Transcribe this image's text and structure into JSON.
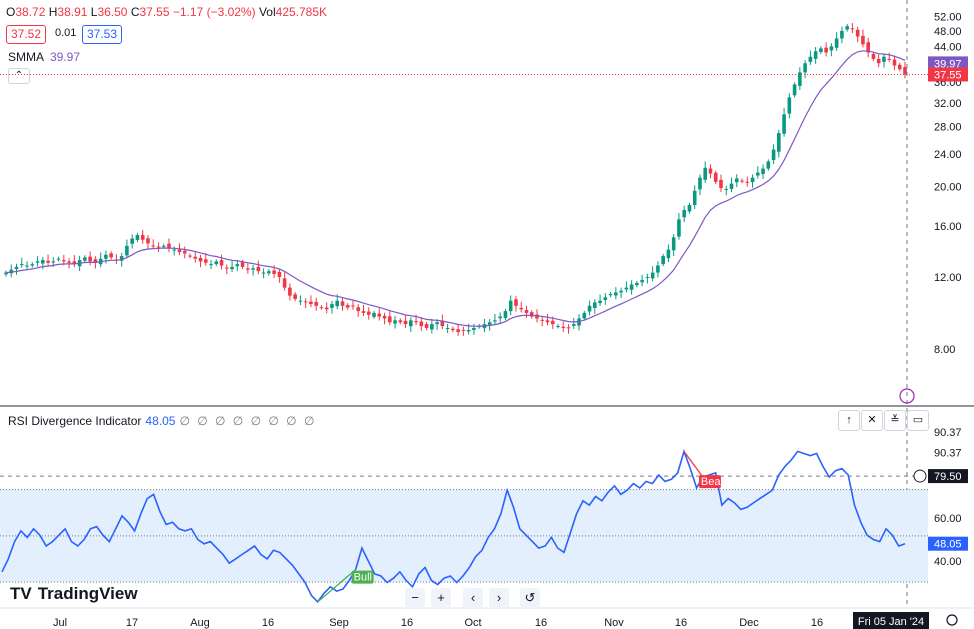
{
  "legend": {
    "o_label": "O",
    "o": "38.72",
    "h_label": "H",
    "h": "38.91",
    "l_label": "L",
    "l": "36.50",
    "c_label": "C",
    "c": "37.55",
    "change": "−1.17 (−3.02%)",
    "vol_label": "Vol",
    "vol": "425.785K",
    "sell": "37.52",
    "spread": "0.01",
    "buy": "37.53",
    "smma_label": "SMMA",
    "smma_value": "39.97",
    "collapse_glyph": "⌃"
  },
  "rsi": {
    "title": "RSI Divergence Indicator",
    "value": "48.05",
    "slots": "∅ ∅ ∅ ∅ ∅ ∅ ∅ ∅"
  },
  "brand": {
    "name": "TradingView",
    "mark": "TV"
  },
  "nav": {
    "zoom_out": "−",
    "zoom_in": "+",
    "back": "‹",
    "forward": "›",
    "reset": "↺"
  },
  "pane_controls": {
    "up": "↑",
    "close": "✕",
    "collapse": "≚",
    "maximize": "▭"
  },
  "colors": {
    "up": "#089981",
    "down": "#f23645",
    "smma": "#7e57c2",
    "rsi": "#2962ff",
    "band": "#e3effd",
    "bull": "#4caf50",
    "bear": "#f23645"
  },
  "chart_data": [
    {
      "type": "candlestick",
      "title": "",
      "y_ticks": [
        8,
        12,
        16,
        20,
        24,
        28,
        32,
        36,
        44,
        48,
        52
      ],
      "y_tick_labels": [
        "8.00",
        "12.00",
        "16.00",
        "20.00",
        "24.00",
        "28.00",
        "32.00",
        "36.00",
        "44.00",
        "48.00",
        "52.00"
      ],
      "ylim": [
        6.0,
        54.0
      ],
      "scale": "log",
      "x_tick_labels": [
        "Jul",
        "17",
        "Aug",
        "16",
        "Sep",
        "16",
        "Oct",
        "16",
        "Nov",
        "16",
        "Dec",
        "16",
        "Fri 05 Jan '24"
      ],
      "last_price": 37.55,
      "last_price_label": "37.55",
      "smma_last": 39.97,
      "smma_last_label": "39.97",
      "close_path": [
        12.3,
        12.5,
        12.7,
        12.9,
        12.8,
        12.9,
        13.1,
        13.2,
        13.0,
        13.1,
        13.3,
        13.1,
        13.0,
        12.9,
        13.2,
        13.4,
        13.1,
        13.0,
        13.3,
        13.6,
        13.4,
        13.2,
        13.5,
        14.3,
        14.9,
        15.2,
        14.8,
        14.5,
        14.3,
        14.2,
        14.3,
        14.1,
        14.0,
        13.8,
        13.7,
        13.5,
        13.3,
        13.1,
        13.0,
        12.9,
        13.1,
        12.8,
        12.6,
        12.7,
        12.9,
        12.7,
        12.5,
        12.6,
        12.4,
        12.3,
        12.4,
        12.2,
        12.0,
        11.3,
        10.8,
        10.6,
        10.5,
        10.4,
        10.3,
        10.2,
        10.1,
        10.0,
        10.3,
        10.5,
        10.2,
        10.1,
        10.2,
        9.9,
        9.8,
        9.7,
        9.8,
        9.6,
        9.5,
        9.3,
        9.4,
        9.3,
        9.2,
        9.4,
        9.3,
        9.1,
        9.0,
        9.2,
        9.3,
        9.1,
        9.0,
        8.9,
        8.8,
        8.9,
        8.9,
        9.0,
        9.1,
        9.2,
        9.3,
        9.4,
        9.6,
        9.9,
        10.5,
        10.2,
        10.0,
        9.8,
        9.6,
        9.5,
        9.4,
        9.3,
        9.2,
        9.1,
        9.0,
        9.0,
        9.2,
        9.5,
        9.8,
        10.2,
        10.4,
        10.5,
        10.7,
        10.9,
        11.0,
        11.1,
        11.3,
        11.5,
        11.6,
        11.8,
        12.0,
        12.3,
        12.8,
        13.5,
        14.0,
        15.0,
        16.6,
        17.5,
        18.0,
        19.5,
        21.0,
        22.2,
        21.5,
        20.5,
        19.8,
        19.7,
        20.3,
        20.9,
        20.6,
        20.4,
        21.0,
        21.6,
        22.1,
        23.0,
        24.6,
        27.0,
        30.0,
        33.0,
        35.5,
        38.0,
        40.0,
        41.5,
        42.8,
        43.5,
        42.5,
        44.0,
        46.0,
        48.0,
        49.3,
        48.5,
        46.5,
        44.5,
        42.5,
        41.0,
        40.0,
        41.5,
        41.0,
        39.5,
        38.7,
        37.55
      ]
    },
    {
      "type": "line",
      "title": "RSI Divergence Indicator",
      "y_ticks": [
        40,
        60,
        90.37
      ],
      "y_tick_labels": [
        "40.00",
        "60.00",
        "90.37"
      ],
      "ylim": [
        20,
        100
      ],
      "band": [
        30.2,
        73.2
      ],
      "band_mid": 51.7,
      "crosshair_level": 79.5,
      "crosshair_label": "79.50",
      "top_label": "90.37",
      "last": 48.05,
      "last_label": "48.05",
      "values": [
        35,
        41,
        49,
        54,
        51,
        55,
        52,
        47,
        49,
        52,
        55,
        49,
        47,
        50,
        55,
        56,
        52,
        49,
        55,
        61,
        58,
        54,
        62,
        69,
        71,
        63,
        57,
        58,
        55,
        54,
        55,
        50,
        48,
        49,
        46,
        43,
        39,
        41,
        43,
        45,
        47,
        43,
        41,
        45,
        44,
        41,
        38,
        34,
        30,
        24,
        21,
        25,
        28,
        26,
        27,
        31,
        36,
        46,
        40,
        34,
        33,
        30,
        32,
        35,
        31,
        28,
        34,
        37,
        31,
        29,
        32,
        33,
        30,
        33,
        37,
        42,
        45,
        51,
        55,
        62,
        73,
        65,
        55,
        52,
        49,
        46,
        47,
        51,
        46,
        44,
        53,
        62,
        68,
        66,
        70,
        68,
        72,
        75,
        71,
        73,
        76,
        74,
        77,
        76,
        80,
        77,
        78,
        81,
        91,
        83,
        74,
        79,
        80,
        81,
        66,
        69,
        67,
        64,
        65,
        67,
        69,
        71,
        73,
        80,
        84,
        87,
        91,
        90,
        89,
        90,
        84,
        79,
        82,
        83,
        80,
        66,
        58,
        52,
        50,
        49,
        55,
        52,
        47,
        48
      ],
      "divergences": [
        {
          "label": "Bull",
          "from_index": 50,
          "to_index": 56,
          "kind": "bull"
        },
        {
          "label": "Bear",
          "from_index": 108,
          "to_index": 111,
          "kind": "bear"
        }
      ]
    }
  ]
}
